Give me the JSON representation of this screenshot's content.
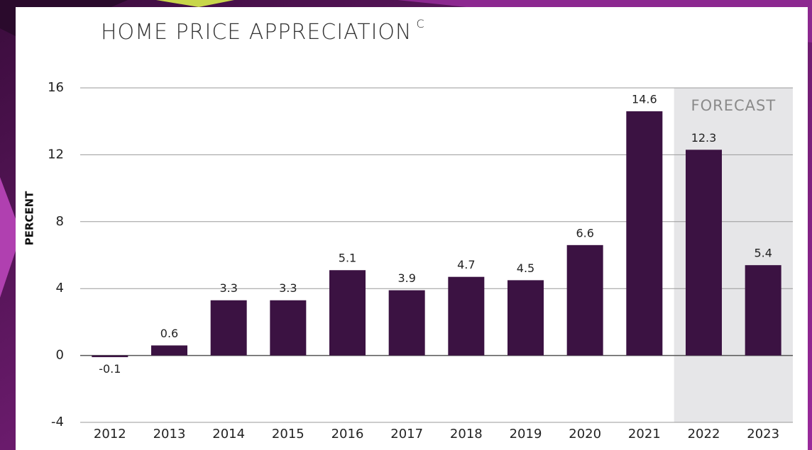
{
  "chart_data": {
    "type": "bar",
    "title": "HOME PRICE APPRECIATION",
    "title_note": "C",
    "y_label": "PERCENT",
    "categories": [
      "2012",
      "2013",
      "2014",
      "2015",
      "2016",
      "2017",
      "2018",
      "2019",
      "2020",
      "2021",
      "2022",
      "2023"
    ],
    "values": [
      -0.1,
      0.6,
      3.3,
      3.3,
      5.1,
      3.9,
      4.7,
      4.5,
      6.6,
      14.6,
      12.3,
      5.4
    ],
    "color": "#3b1242",
    "ylim": [
      -4,
      16
    ],
    "yticks": [
      -4,
      0,
      4,
      8,
      12,
      16
    ],
    "grid": true,
    "forecast_label": "FORECAST",
    "forecast_from": "2022"
  }
}
